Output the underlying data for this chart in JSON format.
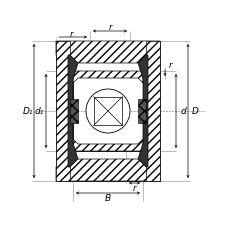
{
  "bg_color": "#ffffff",
  "line_color": "#000000",
  "dark_seal": "#444444",
  "hatch_seal": "#666666",
  "figsize": [
    2.3,
    2.3
  ],
  "dpi": 100,
  "labels": {
    "D1": "D₁",
    "d1": "d₁",
    "d": "d",
    "D": "D",
    "B": "B",
    "r": "r"
  }
}
